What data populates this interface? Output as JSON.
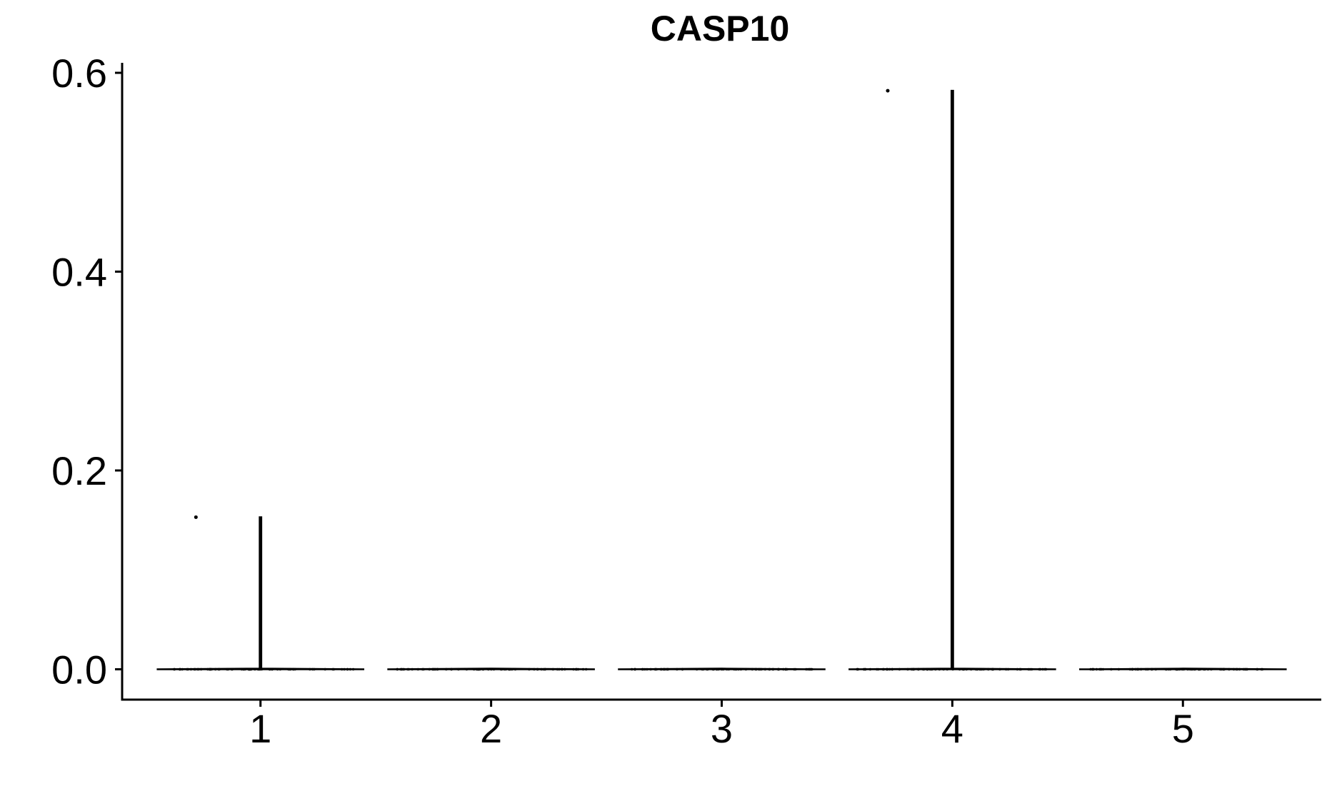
{
  "chart_data": {
    "type": "violin",
    "title": "CASP10",
    "xlabel": "",
    "ylabel": "",
    "categories": [
      "1",
      "2",
      "3",
      "4",
      "5"
    ],
    "ylim": [
      -0.05,
      0.62
    ],
    "yticks": [
      0.0,
      0.2,
      0.4,
      0.6
    ],
    "ytick_labels": [
      "0.0",
      "0.2",
      "0.4",
      "0.6"
    ],
    "grid": false,
    "legend": "none",
    "series": [
      {
        "category": "1",
        "min": 0.0,
        "max": 0.153,
        "outliers": [
          0.153
        ]
      },
      {
        "category": "2",
        "min": 0.0,
        "max": 0.0,
        "outliers": []
      },
      {
        "category": "3",
        "min": 0.0,
        "max": 0.0,
        "outliers": []
      },
      {
        "category": "4",
        "min": 0.0,
        "max": 0.582,
        "outliers": [
          0.582
        ]
      },
      {
        "category": "5",
        "min": 0.0,
        "max": 0.0,
        "outliers": []
      }
    ]
  }
}
